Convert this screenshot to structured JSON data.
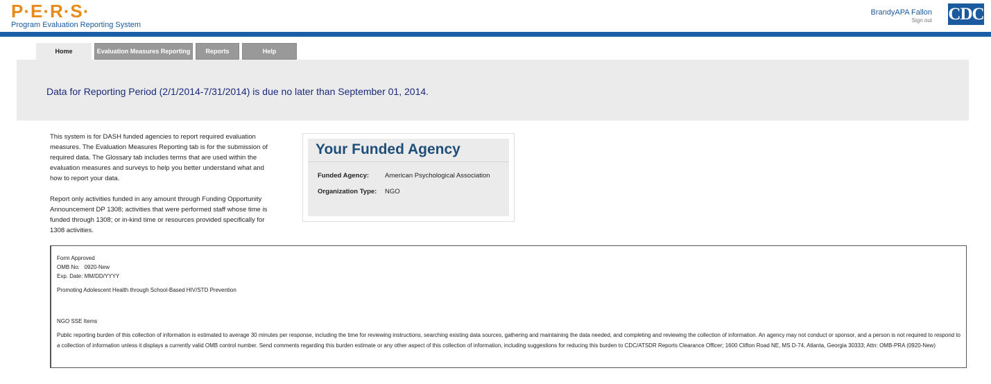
{
  "header": {
    "logo": "P·E·R·S·",
    "subtitle": "Program Evaluation Reporting System",
    "user": "BrandyAPA Fallon",
    "sign_out": "Sign out",
    "cdc_logo": "CDC"
  },
  "tabs": [
    {
      "label": "Home",
      "active": true
    },
    {
      "label": "Evaluation Measures Reporting"
    },
    {
      "label": "Reports"
    },
    {
      "label": "Help"
    }
  ],
  "banner": "Data for Reporting Period (2/1/2014-7/31/2014) is due no later than September 01, 2014.",
  "intro": [
    "This system is for DASH funded agencies to report required evaluation measures. The Evaluation Measures Reporting tab is for the submission of required data. The Glossary tab includes terms that are used within the evaluation measures and surveys to help you better understand what and how to report your data.",
    "Report only activities funded in any amount through Funding Opportunity Announcement DP 1308; activities that were performed staff whose time is funded through 1308; or in-kind time or resources provided specifically for 1308 activities."
  ],
  "agency": {
    "title": "Your Funded Agency",
    "funded_label": "Funded Agency:",
    "funded_value": "American Psychological Association",
    "type_label": "Organization Type:",
    "type_value": "NGO"
  },
  "form": {
    "approved": "Form Approved",
    "omb": "OMB No:   0920-New",
    "exp": "Exp. Date: MM/DD/YYYY",
    "program": "Promoting Adolescent Health through School-Based HIV/STD Prevention",
    "items": "NGO SSE Items",
    "burden": "Public reporting burden of this collection of information is estimated to average 30 minutes per response, including the time for reviewing instructions, searching existing data sources, gathering and maintaining the data needed, and completing and reviewing the collection of information. An agency may not conduct or sponsor, and a person is not required to respond to a collection of information unless it displays a currently valid OMB control number. Send comments regarding this burden estimate or any other aspect of this collection of information, including suggestions for reducing this burden to CDC/ATSDR Reports Clearance Officer; 1600 Clifton Road NE, MS D-74, Atlanta, Georgia 30333; Attn: OMB-PRA (0920-New)"
  },
  "colors": {
    "brand_blue": "#1a5fa6",
    "logo_orange": "#e88a1a"
  }
}
